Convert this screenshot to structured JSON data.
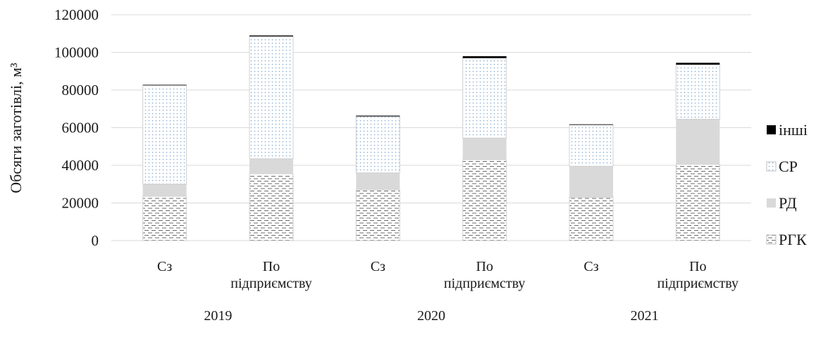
{
  "chart_data": {
    "type": "bar",
    "stacked": true,
    "ylabel": "Обсяги заготівлі, м³",
    "ylim": [
      0,
      120000
    ],
    "yticks": [
      0,
      20000,
      40000,
      60000,
      80000,
      100000,
      120000
    ],
    "grid": true,
    "legend_position": "right",
    "categories": [
      "Сз",
      "По підприємству",
      "Сз",
      "По підприємству",
      "Сз",
      "По підприємству"
    ],
    "category_lines": [
      [
        "Сз"
      ],
      [
        "По",
        "підприємству"
      ],
      [
        "Сз"
      ],
      [
        "По",
        "підприємству"
      ],
      [
        "Сз"
      ],
      [
        "По",
        "підприємству"
      ]
    ],
    "groups": [
      {
        "label": "2019",
        "categories": [
          0,
          1
        ]
      },
      {
        "label": "2020",
        "categories": [
          2,
          3
        ]
      },
      {
        "label": "2021",
        "categories": [
          4,
          5
        ]
      }
    ],
    "series": [
      {
        "name": "РГК",
        "pattern": "dashes",
        "color": "#7f7f7f",
        "values": [
          23500,
          35500,
          27000,
          43000,
          23000,
          40500
        ]
      },
      {
        "name": "РД",
        "pattern": "solid",
        "color": "#d9d9d9",
        "values": [
          6500,
          8000,
          9000,
          11500,
          16500,
          24000
        ]
      },
      {
        "name": "СР",
        "pattern": "dots",
        "color": "#9dc3e6",
        "values": [
          52500,
          65000,
          30000,
          42500,
          22000,
          29000
        ]
      },
      {
        "name": "інші",
        "pattern": "solid",
        "color": "#000000",
        "values": [
          300,
          500,
          400,
          1000,
          300,
          1000
        ]
      }
    ],
    "legend_order": [
      "інші",
      "СР",
      "РД",
      "РГК"
    ]
  }
}
